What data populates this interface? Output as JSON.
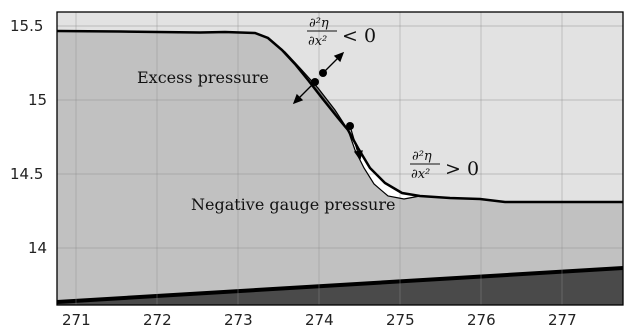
{
  "axes": {
    "x_ticks": [
      "271",
      "272",
      "273",
      "274",
      "275",
      "276",
      "277"
    ],
    "y_ticks": [
      "15.5",
      "15",
      "14.5",
      "14"
    ],
    "x_range": [
      270.9,
      277.8
    ],
    "y_range": [
      13.62,
      15.6
    ],
    "grid": true
  },
  "labels": {
    "excess": "Excess pressure",
    "negative": "Negative gauge pressure"
  },
  "math_top": {
    "num": "∂²η",
    "den": "∂x²",
    "rel": "< 0"
  },
  "math_right": {
    "num": "∂²η",
    "den": "∂x²",
    "rel": "> 0"
  },
  "colors": {
    "upper_region": "#e2e2e2",
    "water_region": "#c1c1c1",
    "bed_region": "#4a4a4a",
    "dark_wedge": "#7a7a7a",
    "light_wedge": "#ffffff"
  }
}
